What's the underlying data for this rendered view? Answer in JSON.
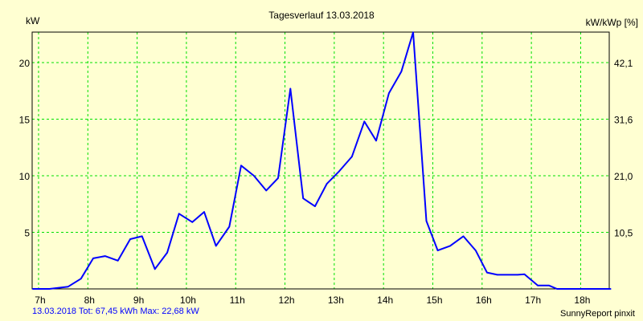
{
  "chart_data": {
    "type": "line",
    "title": "Tagesverlauf 13.03.2018",
    "ylabel": "kW",
    "ylabel_right": "kW/kWp [%]",
    "xlim": [
      6.87,
      18.58
    ],
    "ylim": [
      0,
      22.7
    ],
    "grid": true,
    "x_ticks": [
      7,
      8,
      9,
      10,
      11,
      12,
      13,
      14,
      15,
      16,
      17,
      18
    ],
    "x_tick_labels": [
      "7h",
      "8h",
      "9h",
      "10h",
      "11h",
      "12h",
      "13h",
      "14h",
      "15h",
      "16h",
      "17h",
      "18h"
    ],
    "y_ticks": [
      5,
      10,
      15,
      20
    ],
    "y_tick_labels": [
      "5",
      "10",
      "15",
      "20"
    ],
    "y_right_tick_labels": [
      "10,5",
      "21,0",
      "31,6",
      "42,1"
    ],
    "series": [
      {
        "name": "kW",
        "color": "#0000FF",
        "x": [
          6.88,
          7.22,
          7.6,
          7.86,
          8.11,
          8.35,
          8.61,
          8.86,
          9.1,
          9.36,
          9.61,
          9.85,
          10.12,
          10.36,
          10.6,
          10.87,
          11.11,
          11.37,
          11.62,
          11.86,
          12.11,
          12.37,
          12.61,
          12.85,
          13.1,
          13.36,
          13.61,
          13.85,
          14.11,
          14.36,
          14.6,
          14.87,
          15.1,
          15.35,
          15.62,
          15.87,
          16.1,
          16.31,
          16.72,
          16.86,
          17.13,
          17.36,
          17.52,
          18.61
        ],
        "values": [
          0,
          0,
          0.2,
          0.9,
          2.7,
          2.9,
          2.5,
          4.4,
          4.65,
          1.75,
          3.2,
          6.65,
          5.9,
          6.8,
          3.8,
          5.5,
          10.9,
          10.0,
          8.7,
          9.8,
          17.7,
          8.0,
          7.3,
          9.3,
          10.4,
          11.7,
          14.8,
          13.1,
          17.3,
          19.2,
          22.68,
          6.0,
          3.4,
          3.8,
          4.65,
          3.4,
          1.45,
          1.25,
          1.25,
          1.3,
          0.3,
          0.3,
          0,
          0
        ]
      }
    ]
  },
  "footer": {
    "summary": "13.03.2018 Tot: 67,45 kWh Max: 22,68 kW",
    "credit": "SunnyReport pinxit"
  },
  "colors": {
    "background": "#FFFFD2",
    "grid": "#00E000",
    "line": "#0000FF",
    "summary_text": "#0000FF"
  }
}
